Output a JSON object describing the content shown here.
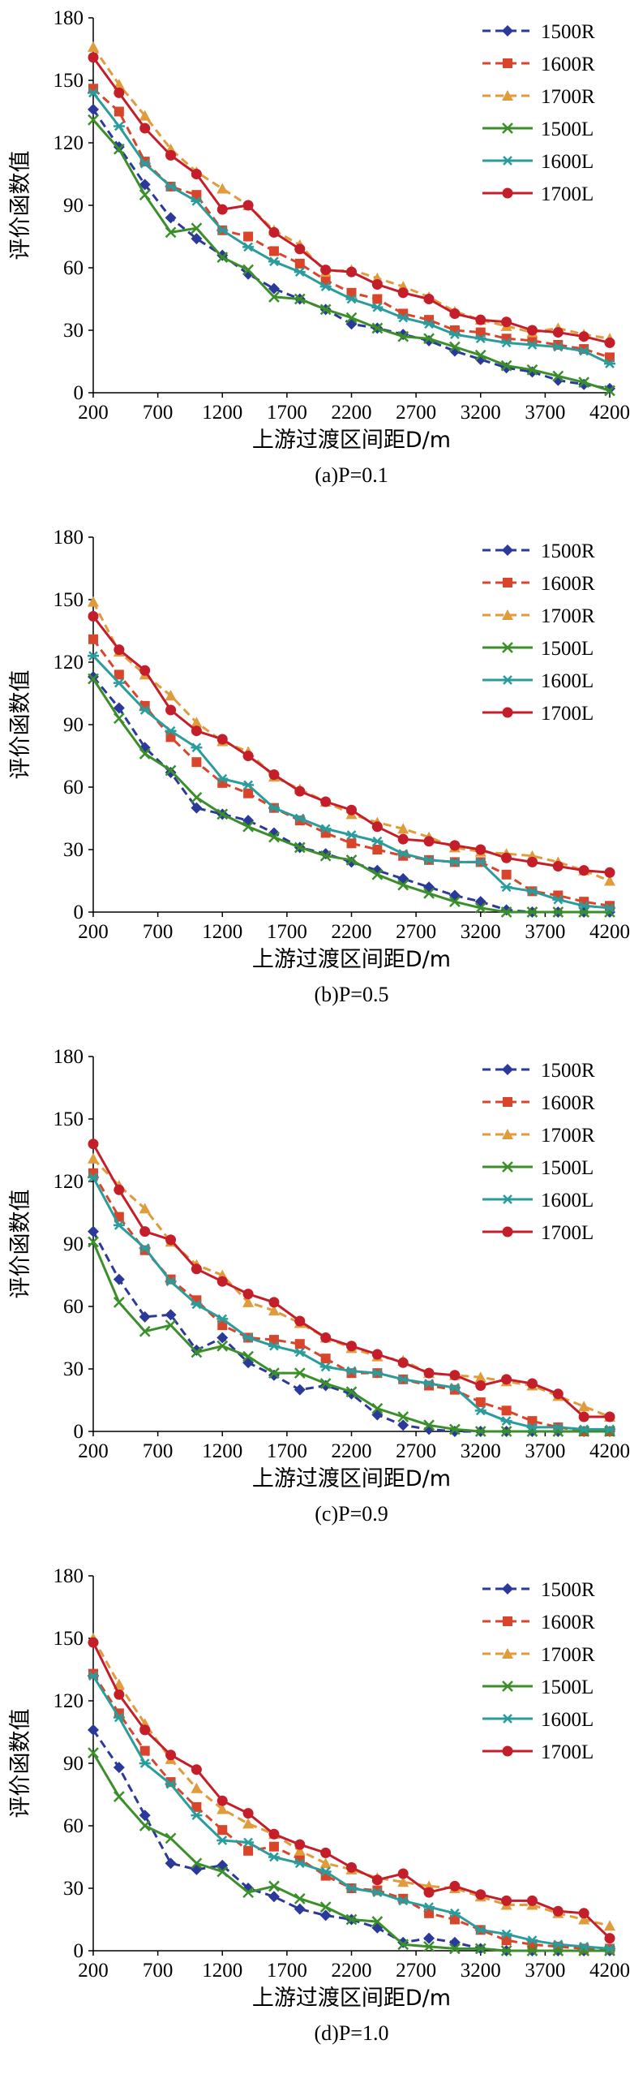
{
  "chart_data": [
    {
      "type": "line",
      "caption": "(a)P=0.1",
      "xlabel": "上游过渡区间距D/m",
      "ylabel": "评价函数值",
      "ylim": [
        0,
        180
      ],
      "yticks": [
        0,
        30,
        60,
        90,
        120,
        150,
        180
      ],
      "xlim": [
        200,
        4200
      ],
      "xticks": [
        200,
        700,
        1200,
        1700,
        2200,
        2700,
        3200,
        3700,
        4200
      ],
      "legend_position": "top-right",
      "x": [
        200,
        400,
        600,
        800,
        1000,
        1200,
        1400,
        1600,
        1800,
        2000,
        2200,
        2400,
        2600,
        2800,
        3000,
        3200,
        3400,
        3600,
        3800,
        4000,
        4200
      ],
      "series": [
        {
          "name": "1500R",
          "color": "#2b3a9a",
          "marker": "diamond",
          "dash": true,
          "values": [
            136,
            118,
            100,
            84,
            74,
            66,
            57,
            50,
            45,
            40,
            33,
            31,
            28,
            25,
            20,
            16,
            12,
            10,
            6,
            4,
            2
          ]
        },
        {
          "name": "1600R",
          "color": "#d9452b",
          "marker": "square",
          "dash": true,
          "values": [
            146,
            135,
            111,
            99,
            95,
            78,
            75,
            68,
            62,
            54,
            48,
            45,
            38,
            35,
            30,
            29,
            26,
            25,
            23,
            21,
            17
          ]
        },
        {
          "name": "1700R",
          "color": "#e09b3a",
          "marker": "triangle",
          "dash": true,
          "values": [
            166,
            148,
            133,
            117,
            106,
            98,
            90,
            78,
            71,
            58,
            59,
            55,
            51,
            46,
            39,
            35,
            32,
            29,
            31,
            28,
            26
          ]
        },
        {
          "name": "1500L",
          "color": "#3a8f2a",
          "marker": "x",
          "dash": false,
          "values": [
            131,
            117,
            95,
            77,
            79,
            65,
            59,
            46,
            45,
            40,
            36,
            31,
            27,
            26,
            22,
            18,
            13,
            11,
            8,
            5,
            1
          ]
        },
        {
          "name": "1600L",
          "color": "#2a9c9c",
          "marker": "star",
          "dash": false,
          "values": [
            144,
            128,
            110,
            99,
            92,
            78,
            70,
            63,
            58,
            51,
            45,
            41,
            36,
            33,
            28,
            26,
            24,
            23,
            22,
            20,
            14
          ]
        },
        {
          "name": "1700L",
          "color": "#c41e2a",
          "marker": "circle",
          "dash": false,
          "values": [
            161,
            144,
            127,
            114,
            105,
            88,
            90,
            77,
            69,
            59,
            58,
            52,
            48,
            45,
            38,
            35,
            34,
            30,
            29,
            27,
            24
          ]
        }
      ]
    },
    {
      "type": "line",
      "caption": "(b)P=0.5",
      "xlabel": "上游过渡区间距D/m",
      "ylabel": "评价函数值",
      "ylim": [
        0,
        180
      ],
      "yticks": [
        0,
        30,
        60,
        90,
        120,
        150,
        180
      ],
      "xlim": [
        200,
        4200
      ],
      "xticks": [
        200,
        700,
        1200,
        1700,
        2200,
        2700,
        3200,
        3700,
        4200
      ],
      "legend_position": "top-right",
      "x": [
        200,
        400,
        600,
        800,
        1000,
        1200,
        1400,
        1600,
        1800,
        2000,
        2200,
        2400,
        2600,
        2800,
        3000,
        3200,
        3400,
        3600,
        3800,
        4000,
        4200
      ],
      "series": [
        {
          "name": "1500R",
          "color": "#2b3a9a",
          "marker": "diamond",
          "dash": true,
          "values": [
            113,
            98,
            79,
            67,
            50,
            47,
            44,
            38,
            31,
            28,
            24,
            20,
            16,
            12,
            8,
            5,
            1,
            0,
            0,
            0,
            0
          ]
        },
        {
          "name": "1600R",
          "color": "#d9452b",
          "marker": "square",
          "dash": true,
          "values": [
            131,
            114,
            99,
            84,
            72,
            62,
            57,
            50,
            44,
            38,
            33,
            30,
            27,
            25,
            24,
            24,
            18,
            10,
            8,
            5,
            3
          ]
        },
        {
          "name": "1700R",
          "color": "#e09b3a",
          "marker": "triangle",
          "dash": true,
          "values": [
            149,
            125,
            114,
            104,
            91,
            82,
            77,
            65,
            59,
            53,
            47,
            43,
            40,
            36,
            31,
            29,
            28,
            27,
            24,
            20,
            15
          ]
        },
        {
          "name": "1500L",
          "color": "#3a8f2a",
          "marker": "x",
          "dash": false,
          "values": [
            112,
            93,
            76,
            68,
            55,
            47,
            41,
            36,
            31,
            27,
            25,
            18,
            13,
            9,
            5,
            2,
            0,
            0,
            0,
            0,
            0
          ]
        },
        {
          "name": "1600L",
          "color": "#2a9c9c",
          "marker": "star",
          "dash": false,
          "values": [
            123,
            110,
            97,
            87,
            79,
            64,
            61,
            50,
            45,
            40,
            37,
            34,
            28,
            25,
            24,
            24,
            12,
            10,
            6,
            3,
            2
          ]
        },
        {
          "name": "1700L",
          "color": "#c41e2a",
          "marker": "circle",
          "dash": false,
          "values": [
            142,
            126,
            116,
            97,
            87,
            83,
            75,
            66,
            58,
            53,
            49,
            41,
            35,
            34,
            32,
            30,
            26,
            24,
            22,
            20,
            19
          ]
        }
      ]
    },
    {
      "type": "line",
      "caption": "(c)P=0.9",
      "xlabel": "上游过渡区间距D/m",
      "ylabel": "评价函数值",
      "ylim": [
        0,
        180
      ],
      "yticks": [
        0,
        30,
        60,
        90,
        120,
        150,
        180
      ],
      "xlim": [
        200,
        4200
      ],
      "xticks": [
        200,
        700,
        1200,
        1700,
        2200,
        2700,
        3200,
        3700,
        4200
      ],
      "legend_position": "top-right",
      "x": [
        200,
        400,
        600,
        800,
        1000,
        1200,
        1400,
        1600,
        1800,
        2000,
        2200,
        2400,
        2600,
        2800,
        3000,
        3200,
        3400,
        3600,
        3800,
        4000,
        4200
      ],
      "series": [
        {
          "name": "1500R",
          "color": "#2b3a9a",
          "marker": "diamond",
          "dash": true,
          "values": [
            96,
            73,
            55,
            56,
            39,
            45,
            33,
            27,
            20,
            22,
            18,
            8,
            3,
            1,
            0,
            0,
            0,
            0,
            0,
            0,
            0
          ]
        },
        {
          "name": "1600R",
          "color": "#d9452b",
          "marker": "square",
          "dash": true,
          "values": [
            124,
            103,
            87,
            73,
            63,
            51,
            45,
            44,
            42,
            35,
            28,
            28,
            25,
            22,
            20,
            14,
            10,
            5,
            2,
            0,
            0
          ]
        },
        {
          "name": "1700R",
          "color": "#e09b3a",
          "marker": "triangle",
          "dash": true,
          "values": [
            131,
            118,
            107,
            91,
            80,
            75,
            62,
            58,
            52,
            45,
            40,
            36,
            34,
            28,
            27,
            26,
            24,
            22,
            17,
            12,
            7
          ]
        },
        {
          "name": "1500L",
          "color": "#3a8f2a",
          "marker": "x",
          "dash": false,
          "values": [
            91,
            62,
            48,
            51,
            38,
            41,
            36,
            28,
            28,
            23,
            19,
            11,
            7,
            3,
            1,
            0,
            0,
            0,
            0,
            0,
            0
          ]
        },
        {
          "name": "1600L",
          "color": "#2a9c9c",
          "marker": "star",
          "dash": false,
          "values": [
            122,
            99,
            88,
            72,
            61,
            54,
            45,
            41,
            38,
            31,
            29,
            28,
            25,
            23,
            21,
            10,
            5,
            2,
            2,
            1,
            1
          ]
        },
        {
          "name": "1700L",
          "color": "#c41e2a",
          "marker": "circle",
          "dash": false,
          "values": [
            138,
            116,
            96,
            92,
            78,
            72,
            66,
            62,
            53,
            45,
            41,
            37,
            33,
            28,
            27,
            22,
            25,
            23,
            18,
            7,
            7
          ]
        }
      ]
    },
    {
      "type": "line",
      "caption": "(d)P=1.0",
      "xlabel": "上游过渡区间距D/m",
      "ylabel": "评价函数值",
      "ylim": [
        0,
        180
      ],
      "yticks": [
        0,
        30,
        60,
        90,
        120,
        150,
        180
      ],
      "xlim": [
        200,
        4200
      ],
      "xticks": [
        200,
        700,
        1200,
        1700,
        2200,
        2700,
        3200,
        3700,
        4200
      ],
      "legend_position": "top-right",
      "x": [
        200,
        400,
        600,
        800,
        1000,
        1200,
        1400,
        1600,
        1800,
        2000,
        2200,
        2400,
        2600,
        2800,
        3000,
        3200,
        3400,
        3600,
        3800,
        4000,
        4200
      ],
      "series": [
        {
          "name": "1500R",
          "color": "#2b3a9a",
          "marker": "diamond",
          "dash": true,
          "values": [
            106,
            88,
            65,
            42,
            39,
            41,
            30,
            26,
            20,
            17,
            15,
            11,
            4,
            6,
            4,
            1,
            0,
            0,
            0,
            0,
            0
          ]
        },
        {
          "name": "1600R",
          "color": "#d9452b",
          "marker": "square",
          "dash": true,
          "values": [
            133,
            114,
            96,
            81,
            69,
            58,
            48,
            50,
            44,
            36,
            30,
            29,
            25,
            18,
            15,
            10,
            5,
            3,
            2,
            1,
            1
          ]
        },
        {
          "name": "1700R",
          "color": "#e09b3a",
          "marker": "triangle",
          "dash": true,
          "values": [
            150,
            128,
            109,
            92,
            78,
            68,
            61,
            56,
            48,
            42,
            39,
            35,
            33,
            31,
            30,
            26,
            22,
            22,
            18,
            15,
            12
          ]
        },
        {
          "name": "1500L",
          "color": "#3a8f2a",
          "marker": "x",
          "dash": false,
          "values": [
            95,
            74,
            60,
            54,
            42,
            38,
            28,
            31,
            25,
            21,
            15,
            14,
            3,
            2,
            1,
            1,
            0,
            0,
            0,
            0,
            0
          ]
        },
        {
          "name": "1600L",
          "color": "#2a9c9c",
          "marker": "star",
          "dash": false,
          "values": [
            132,
            112,
            90,
            80,
            65,
            53,
            52,
            45,
            42,
            38,
            30,
            28,
            24,
            21,
            18,
            10,
            8,
            5,
            3,
            2,
            1
          ]
        },
        {
          "name": "1700L",
          "color": "#c41e2a",
          "marker": "circle",
          "dash": false,
          "values": [
            148,
            123,
            106,
            94,
            87,
            72,
            66,
            56,
            51,
            47,
            40,
            34,
            37,
            28,
            31,
            27,
            24,
            24,
            19,
            18,
            6
          ]
        }
      ]
    }
  ]
}
